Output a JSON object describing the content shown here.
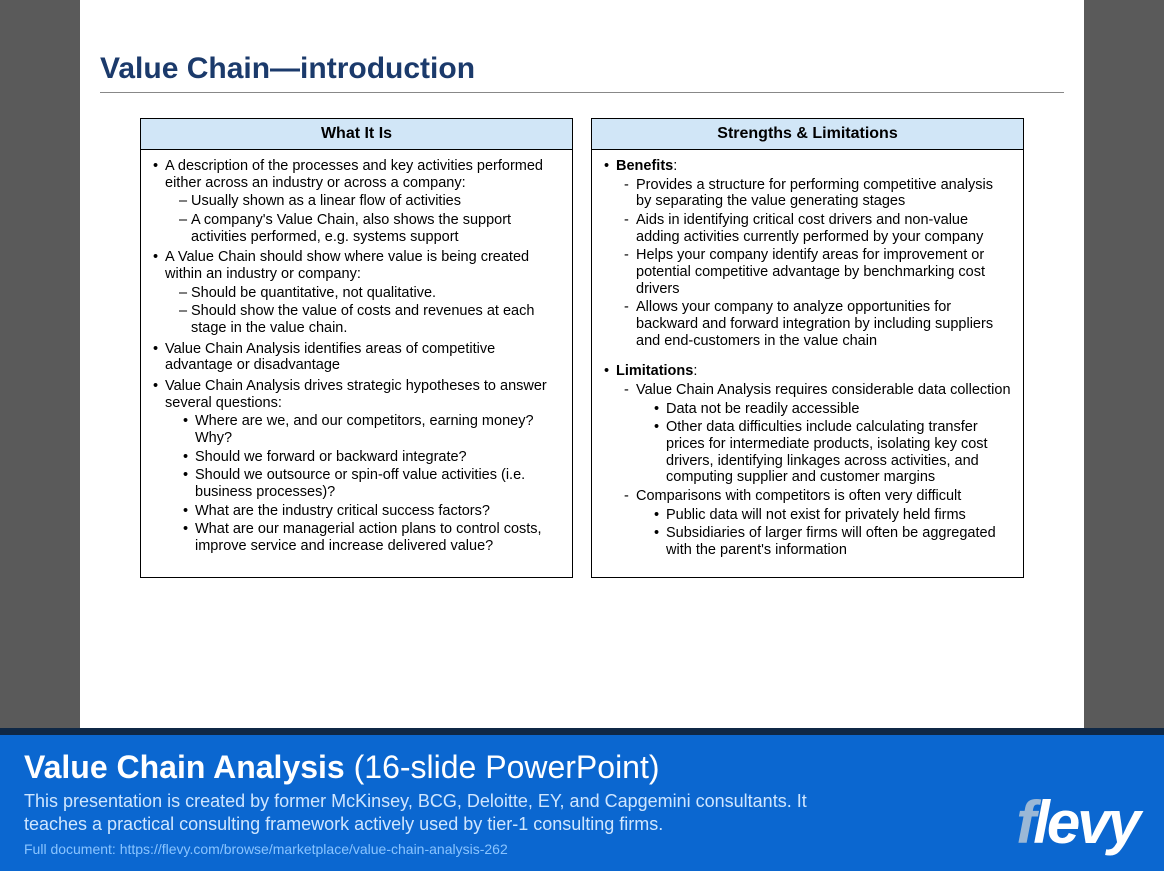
{
  "slide": {
    "title": "Value Chain—introduction",
    "left": {
      "header": "What It Is",
      "b1": "A description of the processes and key activities performed either across an industry or across a company:",
      "b1_d1": "Usually shown as a linear flow of activities",
      "b1_d2": "A company's Value Chain, also shows the support activities performed, e.g. systems support",
      "b2": "A Value Chain should show where value is being created within an industry or company:",
      "b2_d1": "Should be quantitative, not qualitative.",
      "b2_d2": "Should show the value of costs and revenues at each stage in the value chain.",
      "b3": "Value Chain Analysis identifies areas of competitive advantage or disadvantage",
      "b4": "Value Chain Analysis drives strategic hypotheses to answer several questions:",
      "b4_s1": "Where are we, and our competitors, earning money? Why?",
      "b4_s2": "Should we forward or backward integrate?",
      "b4_s3": "Should we outsource or spin-off value activities (i.e. business processes)?",
      "b4_s4": "What are the industry critical success factors?",
      "b4_s5": "What are our managerial action plans to control costs, improve service and increase delivered value?"
    },
    "right": {
      "header": "Strengths & Limitations",
      "benefits_label": "Benefits",
      "ben1": "Provides a structure for performing competitive analysis by separating the value generating stages",
      "ben2": "Aids in identifying critical cost drivers and non-value adding activities currently performed by your company",
      "ben3": "Helps your company identify areas for improvement or potential competitive advantage by benchmarking cost drivers",
      "ben4": "Allows your company to analyze opportunities for backward and forward integration by including suppliers and end-customers in the value chain",
      "limitations_label": "Limitations",
      "lim1": "Value Chain Analysis requires considerable data collection",
      "lim1_s1": "Data not be readily accessible",
      "lim1_s2": "Other data difficulties include calculating transfer prices for intermediate products, isolating key cost drivers, identifying linkages across activities, and computing supplier and customer margins",
      "lim2": "Comparisons with competitors is often very difficult",
      "lim2_s1": "Public data will not exist for privately held firms",
      "lim2_s2": "Subsidiaries of larger firms will often be aggregated with the parent's information"
    }
  },
  "banner": {
    "title_bold": "Value Chain Analysis",
    "title_light": " (16-slide PowerPoint)",
    "description": "This presentation is created by former McKinsey, BCG, Deloitte, EY, and Capgemini consultants. It teaches a practical consulting framework actively used by tier-1 consulting firms.",
    "link": "Full document: https://flevy.com/browse/marketplace/value-chain-analysis-262",
    "logo_f": "f",
    "logo_rest": "levy"
  },
  "colors": {
    "page_bg": "#5a5a5a",
    "slide_bg": "#ffffff",
    "title_color": "#1b3a6b",
    "panel_header_bg": "#d1e6f7",
    "banner_bg": "#0b67d0",
    "banner_border": "#0f2846",
    "banner_desc": "#cfe6ff",
    "banner_link": "#89c4ff",
    "logo_f": "#9bb8d6"
  }
}
